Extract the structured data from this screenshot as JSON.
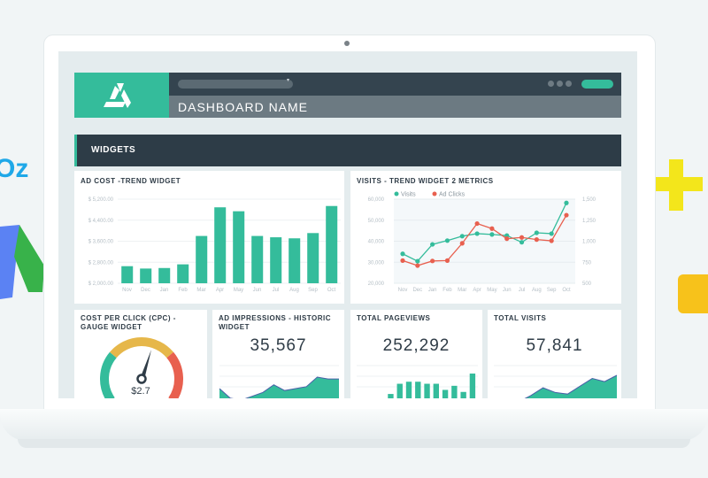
{
  "header": {
    "dashboard_name": "DASHBOARD NAME",
    "section_title": "WIDGETS"
  },
  "colors": {
    "accent": "#34bc9b",
    "dark": "#2f3c47",
    "header_gray": "#6c7a82",
    "red": "#e8604f",
    "yellow": "#e6b74a"
  },
  "background_logos": [
    "moz-logo",
    "google-ads-logo",
    "plus-shape",
    "yellow-square"
  ],
  "widgets": {
    "ad_cost": {
      "title": "AD COST -TREND WIDGET"
    },
    "visits": {
      "title": "VISITS - TREND WIDGET 2 METRICS"
    },
    "cpc": {
      "title": "COST PER CLICK (CPC) - GAUGE WIDGET",
      "value": "$2.7"
    },
    "impressions": {
      "title": "AD IMPRESSIONS - HISTORIC WIDGET",
      "value": "35,567"
    },
    "pageviews": {
      "title": "TOTAL PAGEVIEWS",
      "value": "252,292"
    },
    "total_visits": {
      "title": "TOTAL VISITS",
      "value": "57,841"
    }
  },
  "chart_data": [
    {
      "type": "bar",
      "title": "AD COST -TREND WIDGET",
      "categories": [
        "Nov",
        "Dec",
        "Jan",
        "Feb",
        "Mar",
        "Apr",
        "May",
        "Jun",
        "Jul",
        "Aug",
        "Sep",
        "Oct"
      ],
      "values": [
        2650,
        2560,
        2580,
        2720,
        3800,
        4890,
        4740,
        3800,
        3750,
        3710,
        3910,
        4940
      ],
      "ylim": [
        2000,
        5200
      ],
      "yticks": [
        "$ 2,000.00",
        "$ 2,800.00",
        "$ 3,600.00",
        "$ 4,400.00",
        "$ 5,200.00"
      ],
      "ytick_values": [
        2000,
        2800,
        3600,
        4400,
        5200
      ],
      "grid": true,
      "color": "#34bc9b"
    },
    {
      "type": "line",
      "title": "VISITS - TREND WIDGET 2 METRICS",
      "categories": [
        "Nov",
        "Dec",
        "Jan",
        "Feb",
        "Mar",
        "Apr",
        "May",
        "Jun",
        "Jul",
        "Aug",
        "Sep",
        "Oct"
      ],
      "series": [
        {
          "name": "Visits",
          "axis": "left",
          "color": "#34bc9b",
          "values": [
            34000,
            30500,
            38500,
            40300,
            42400,
            43600,
            43200,
            42700,
            39500,
            44000,
            43600,
            58200
          ]
        },
        {
          "name": "Ad Clicks",
          "axis": "right",
          "color": "#e8604f",
          "values": [
            770,
            710,
            765,
            770,
            975,
            1210,
            1150,
            1030,
            1045,
            1020,
            1005,
            1310
          ]
        }
      ],
      "ylim_left": [
        20000,
        60000
      ],
      "yticks_left": [
        "20,000",
        "30,000",
        "40,000",
        "50,000",
        "60,000"
      ],
      "ylim_right": [
        500,
        1500
      ],
      "yticks_right": [
        "500",
        "750",
        "1,000",
        "1,250",
        "1,500"
      ],
      "legend": "top",
      "grid": true
    },
    {
      "type": "area",
      "title": "AD IMPRESSIONS - HISTORIC WIDGET",
      "values": [
        6,
        1,
        0,
        2,
        4,
        8,
        5,
        6,
        7,
        12,
        11,
        11
      ],
      "color": "#34bc9b"
    },
    {
      "type": "bar",
      "title": "TOTAL PAGEVIEWS",
      "values": [
        0,
        3,
        8,
        9,
        9,
        8,
        8,
        5,
        7,
        4,
        13
      ],
      "color": "#34bc9b"
    },
    {
      "type": "area",
      "title": "TOTAL VISITS",
      "values": [
        1,
        2,
        0,
        4,
        9,
        6,
        5,
        10,
        15,
        13,
        17
      ],
      "color": "#34bc9b"
    }
  ]
}
